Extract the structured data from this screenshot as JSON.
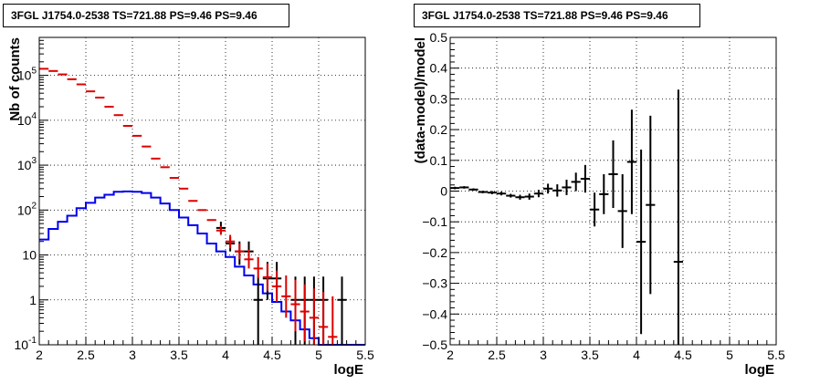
{
  "chart_data": [
    {
      "type": "step-histogram-with-errorbars",
      "title": "3FGL J1754.0-2538 TS=721.88 PS=9.46 PS=9.46",
      "xlabel": "logE",
      "ylabel": "Nb of counts",
      "xlim": [
        2,
        5.5
      ],
      "ylim": [
        0.1,
        700000
      ],
      "yscale": "log",
      "grid": true,
      "x_ticks": [
        "2",
        "2.5",
        "3",
        "3.5",
        "4",
        "4.5",
        "5",
        "5.5"
      ],
      "y_ticks": [
        {
          "v": 0.1,
          "base": "10",
          "exp": "-1"
        },
        {
          "v": 1,
          "base": "1",
          "exp": ""
        },
        {
          "v": 10,
          "base": "10",
          "exp": ""
        },
        {
          "v": 100,
          "base": "10",
          "exp": "2"
        },
        {
          "v": 1000,
          "base": "10",
          "exp": "3"
        },
        {
          "v": 10000,
          "base": "10",
          "exp": "4"
        },
        {
          "v": 100000,
          "base": "10",
          "exp": "5"
        }
      ],
      "series": [
        {
          "type": "step",
          "color": "#0000ee",
          "edges": [
            2.0,
            2.1,
            2.2,
            2.3,
            2.4,
            2.5,
            2.6,
            2.7,
            2.8,
            2.9,
            3.0,
            3.1,
            3.2,
            3.3,
            3.4,
            3.5,
            3.6,
            3.7,
            3.8,
            3.9,
            4.0,
            4.1,
            4.2,
            4.3,
            4.4,
            4.5,
            4.6,
            4.7,
            4.8,
            4.9,
            5.0,
            5.1,
            5.2,
            5.3,
            5.4,
            5.5
          ],
          "values": [
            22,
            38,
            55,
            75,
            110,
            145,
            190,
            220,
            255,
            260,
            255,
            240,
            190,
            140,
            100,
            68,
            46,
            30,
            18,
            12,
            9,
            5.5,
            3.5,
            2.2,
            1.4,
            0.9,
            0.55,
            0.35,
            0.22,
            0.14,
            0.1,
            0.1,
            0.1,
            0.1,
            0.1
          ]
        },
        {
          "type": "errorbar",
          "color": "#000000",
          "x": [
            3.95,
            4.05,
            4.15,
            4.25,
            4.35,
            4.45,
            4.55,
            4.75,
            4.85,
            4.95,
            5.05,
            5.25
          ],
          "y": [
            40,
            18,
            12,
            12,
            1,
            3,
            3,
            1,
            1,
            1,
            1,
            1
          ],
          "y_lo": [
            30,
            12,
            6,
            6,
            0.1,
            1,
            1,
            0.1,
            0.1,
            0.1,
            0.1,
            0.1
          ],
          "y_hi": [
            55,
            25,
            20,
            20,
            3.3,
            7,
            7,
            3.3,
            3.3,
            3.3,
            3.3,
            3.3
          ]
        },
        {
          "type": "errorbar",
          "color": "#dd0000",
          "x": [
            2.05,
            2.15,
            2.25,
            2.35,
            2.45,
            2.55,
            2.65,
            2.75,
            2.85,
            2.95,
            3.05,
            3.15,
            3.25,
            3.35,
            3.45,
            3.55,
            3.65,
            3.75,
            3.85,
            3.95,
            4.05,
            4.15,
            4.25,
            4.35,
            4.45,
            4.55,
            4.65,
            4.75,
            4.85,
            4.95,
            5.05,
            5.15
          ],
          "y": [
            140000,
            125000,
            105000,
            82000,
            63000,
            44000,
            32000,
            20000,
            13000,
            7500,
            4500,
            2600,
            1400,
            900,
            520,
            300,
            160,
            100,
            60,
            35,
            20,
            12,
            8,
            5,
            3.2,
            2,
            1.2,
            0.8,
            0.55,
            0.4,
            0.25,
            0.15
          ],
          "y_lo": [
            140000,
            125000,
            105000,
            82000,
            63000,
            44000,
            32000,
            20000,
            13000,
            7500,
            4500,
            2600,
            1400,
            900,
            520,
            300,
            160,
            100,
            60,
            28,
            14,
            8,
            5,
            3,
            1.6,
            0.9,
            0.4,
            0.2,
            0.12,
            0.1,
            0.1,
            0.1
          ],
          "y_hi": [
            140000,
            125000,
            105000,
            82000,
            63000,
            44000,
            32000,
            20000,
            13000,
            7500,
            4500,
            2600,
            1400,
            900,
            520,
            300,
            160,
            100,
            60,
            44,
            28,
            18,
            13,
            9,
            6.5,
            4.5,
            3.5,
            2.8,
            2.2,
            1.8,
            1.5,
            1.2
          ]
        }
      ]
    },
    {
      "type": "errorbar",
      "title": "3FGL J1754.0-2538 TS=721.88 PS=9.46 PS=9.46",
      "xlabel": "logE",
      "ylabel": "(data-model)/model",
      "xlim": [
        2,
        5.5
      ],
      "ylim": [
        -0.5,
        0.5
      ],
      "yscale": "linear",
      "grid": true,
      "x_ticks": [
        "2",
        "2.5",
        "3",
        "3.5",
        "4",
        "4.5",
        "5",
        "5.5"
      ],
      "y_ticks": [
        "−0.5",
        "−0.4",
        "−0.3",
        "−0.2",
        "−0.1",
        "0",
        "0.1",
        "0.2",
        "0.3",
        "0.4",
        "0.5"
      ],
      "series": [
        {
          "type": "errorbar",
          "color": "#000000",
          "x": [
            2.05,
            2.15,
            2.25,
            2.35,
            2.45,
            2.55,
            2.65,
            2.75,
            2.85,
            2.95,
            3.05,
            3.15,
            3.25,
            3.35,
            3.45,
            3.55,
            3.65,
            3.75,
            3.85,
            3.95,
            4.05,
            4.15,
            4.45
          ],
          "y": [
            0.01,
            0.012,
            0.005,
            -0.003,
            -0.005,
            -0.008,
            -0.015,
            -0.02,
            -0.018,
            -0.008,
            0.008,
            0.002,
            0.012,
            0.03,
            0.04,
            -0.06,
            -0.01,
            0.055,
            -0.065,
            0.095,
            -0.165,
            -0.045,
            -0.23
          ],
          "y_err": [
            0.004,
            0.004,
            0.004,
            0.004,
            0.005,
            0.006,
            0.006,
            0.008,
            0.01,
            0.012,
            0.016,
            0.02,
            0.025,
            0.03,
            0.045,
            0.055,
            0.065,
            0.11,
            0.12,
            0.17,
            0.3,
            0.29,
            0.56
          ]
        }
      ]
    }
  ]
}
